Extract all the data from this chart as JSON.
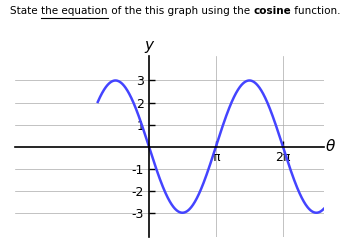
{
  "amplitude": 3,
  "phase_shift": 1.5707963267948966,
  "x_min": -2.4,
  "x_max": 8.2,
  "y_min": -4,
  "y_max": 4,
  "curve_color": "#4444ff",
  "curve_linewidth": 1.8,
  "grid_color": "#aaaaaa",
  "axis_color": "#000000",
  "background_color": "#ffffff",
  "pi": 3.141592653589793,
  "x_tick_positions": [
    3.141592653589793,
    6.283185307179586
  ],
  "x_tick_labels": [
    "π",
    "2π"
  ],
  "y_show": [
    -3,
    -2,
    -1,
    1,
    2,
    3
  ],
  "xlabel": "θ",
  "ylabel": "y",
  "font_size_ticks": 9,
  "font_size_axis_label": 11,
  "title_fontsize": 7.5,
  "title_parts": [
    {
      "text": "State ",
      "bold": false,
      "underline": false
    },
    {
      "text": "the equation",
      "bold": false,
      "underline": true
    },
    {
      "text": " of the this graph using the ",
      "bold": false,
      "underline": false
    },
    {
      "text": "cosine",
      "bold": true,
      "underline": false
    },
    {
      "text": " function.",
      "bold": false,
      "underline": false
    }
  ]
}
